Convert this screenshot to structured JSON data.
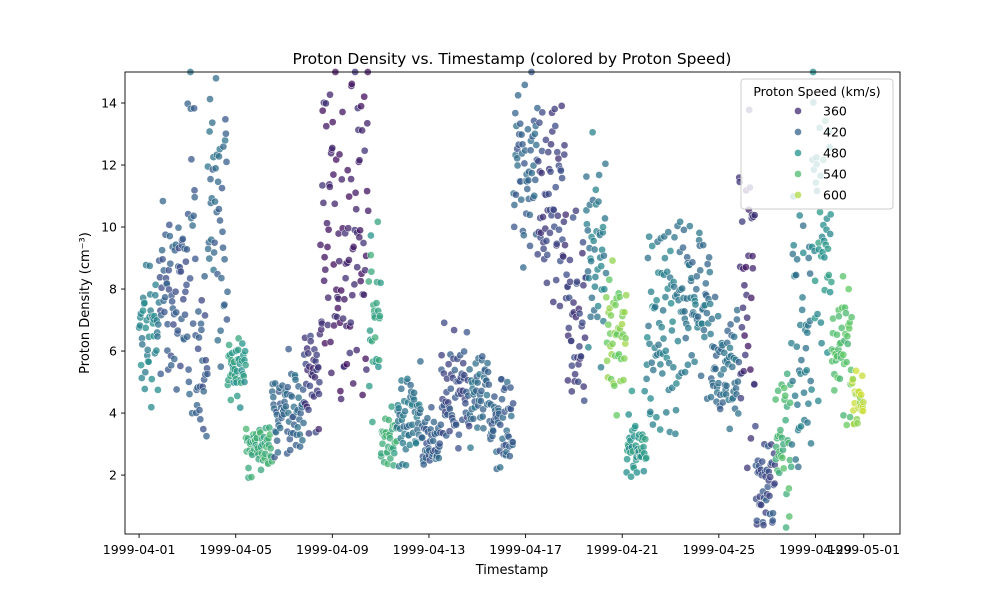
{
  "chart_data": {
    "type": "scatter",
    "title": "Proton Density vs. Timestamp (colored by Proton Speed)",
    "xlabel": "Timestamp",
    "ylabel": "Proton Density (cm⁻³)",
    "x_is_date": true,
    "xlim": [
      "1999-03-31T10:00",
      "1999-05-02T12:00"
    ],
    "ylim": [
      0.1,
      15
    ],
    "x_ticks": [
      "1999-04-01",
      "1999-04-05",
      "1999-04-09",
      "1999-04-13",
      "1999-04-17",
      "1999-04-21",
      "1999-04-25",
      "1999-04-29",
      "1999-05-01"
    ],
    "y_ticks": [
      2,
      4,
      6,
      8,
      10,
      12,
      14
    ],
    "grid": false,
    "legend": {
      "title": "Proton Speed (km/s)",
      "placement": "top-right",
      "entries": [
        {
          "label": "360",
          "speed": 360
        },
        {
          "label": "420",
          "speed": 420
        },
        {
          "label": "480",
          "speed": 480
        },
        {
          "label": "540",
          "speed": 540
        },
        {
          "label": "600",
          "speed": 600
        }
      ]
    },
    "hue": "Proton Speed (km/s)",
    "colormap": "viridis",
    "hue_range": [
      320,
      640
    ],
    "point_groups": [
      {
        "start": "1999-04-01T00:00",
        "end": "1999-04-01T20:00",
        "density_range": [
          4.6,
          8.7
        ],
        "speed": 460
      },
      {
        "start": "1999-04-01T20:00",
        "end": "1999-04-03T00:00",
        "density_range": [
          4.2,
          11.0
        ],
        "speed": 410
      },
      {
        "start": "1999-04-03T00:00",
        "end": "1999-04-03T08:00",
        "density_range": [
          4.0,
          14.8
        ],
        "speed": 420
      },
      {
        "start": "1999-04-03T08:00",
        "end": "1999-04-03T20:00",
        "density_range": [
          3.8,
          7.5
        ],
        "speed": 405
      },
      {
        "start": "1999-04-03T20:00",
        "end": "1999-04-04T16:00",
        "density_range": [
          6.5,
          14.8
        ],
        "speed": 425
      },
      {
        "start": "1999-04-04T16:00",
        "end": "1999-04-05T10:00",
        "density_range": [
          4.5,
          6.3
        ],
        "speed": 490
      },
      {
        "start": "1999-04-05T10:00",
        "end": "1999-04-06T12:00",
        "density_range": [
          2.1,
          3.6
        ],
        "speed": 520
      },
      {
        "start": "1999-04-06T12:00",
        "end": "1999-04-07T20:00",
        "density_range": [
          2.6,
          5.5
        ],
        "speed": 420
      },
      {
        "start": "1999-04-07T20:00",
        "end": "1999-04-08T12:00",
        "density_range": [
          3.6,
          6.8
        ],
        "speed": 370
      },
      {
        "start": "1999-04-08T12:00",
        "end": "1999-04-10T12:00",
        "density_range": [
          4.3,
          15.0
        ],
        "speed": 350
      },
      {
        "start": "1999-04-10T12:00",
        "end": "1999-04-11T00:00",
        "density_range": [
          4.5,
          9.4
        ],
        "speed": 500
      },
      {
        "start": "1999-04-11T00:00",
        "end": "1999-04-11T16:00",
        "density_range": [
          2.3,
          4.0
        ],
        "speed": 515
      },
      {
        "start": "1999-04-11T16:00",
        "end": "1999-04-12T16:00",
        "density_range": [
          2.5,
          5.2
        ],
        "speed": 440
      },
      {
        "start": "1999-04-12T16:00",
        "end": "1999-04-13T12:00",
        "density_range": [
          2.2,
          4.0
        ],
        "speed": 415
      },
      {
        "start": "1999-04-13T12:00",
        "end": "1999-04-14T16:00",
        "density_range": [
          2.6,
          6.6
        ],
        "speed": 400
      },
      {
        "start": "1999-04-14T16:00",
        "end": "1999-04-15T12:00",
        "density_range": [
          3.4,
          6.0
        ],
        "speed": 430
      },
      {
        "start": "1999-04-15T12:00",
        "end": "1999-04-16T12:00",
        "density_range": [
          2.3,
          4.9
        ],
        "speed": 420
      },
      {
        "start": "1999-04-16T12:00",
        "end": "1999-04-17T12:00",
        "density_range": [
          9.0,
          15.0
        ],
        "speed": 420
      },
      {
        "start": "1999-04-17T12:00",
        "end": "1999-04-18T16:00",
        "density_range": [
          8.0,
          14.0
        ],
        "speed": 380
      },
      {
        "start": "1999-04-18T16:00",
        "end": "1999-04-19T12:00",
        "density_range": [
          4.5,
          9.5
        ],
        "speed": 380
      },
      {
        "start": "1999-04-19T12:00",
        "end": "1999-04-20T08:00",
        "density_range": [
          6.0,
          12.0
        ],
        "speed": 450
      },
      {
        "start": "1999-04-20T08:00",
        "end": "1999-04-21T04:00",
        "density_range": [
          4.2,
          9.0
        ],
        "speed": 575
      },
      {
        "start": "1999-04-21T04:00",
        "end": "1999-04-22T00:00",
        "density_range": [
          1.5,
          4.4
        ],
        "speed": 485
      },
      {
        "start": "1999-04-22T00:00",
        "end": "1999-04-23T08:00",
        "density_range": [
          3.0,
          10.0
        ],
        "speed": 455
      },
      {
        "start": "1999-04-23T08:00",
        "end": "1999-04-24T16:00",
        "density_range": [
          5.5,
          10.0
        ],
        "speed": 440
      },
      {
        "start": "1999-04-24T16:00",
        "end": "1999-04-25T20:00",
        "density_range": [
          3.8,
          7.0
        ],
        "speed": 430
      },
      {
        "start": "1999-04-25T20:00",
        "end": "1999-04-26T12:00",
        "density_range": [
          3.8,
          12.0
        ],
        "speed": 360
      },
      {
        "start": "1999-04-26T12:00",
        "end": "1999-04-27T08:00",
        "density_range": [
          0.4,
          3.0
        ],
        "speed": 400
      },
      {
        "start": "1999-04-27T08:00",
        "end": "1999-04-28T00:00",
        "density_range": [
          0.9,
          5.2
        ],
        "speed": 530
      },
      {
        "start": "1999-04-28T00:00",
        "end": "1999-04-28T20:00",
        "density_range": [
          1.5,
          10.5
        ],
        "speed": 450
      },
      {
        "start": "1999-04-28T20:00",
        "end": "1999-04-29T16:00",
        "density_range": [
          6.0,
          14.0
        ],
        "speed": 480
      },
      {
        "start": "1999-04-29T16:00",
        "end": "1999-04-30T12:00",
        "density_range": [
          4.0,
          8.0
        ],
        "speed": 545
      },
      {
        "start": "1999-04-30T12:00",
        "end": "1999-05-01T00:00",
        "density_range": [
          3.5,
          5.2
        ],
        "speed": 600
      }
    ]
  }
}
